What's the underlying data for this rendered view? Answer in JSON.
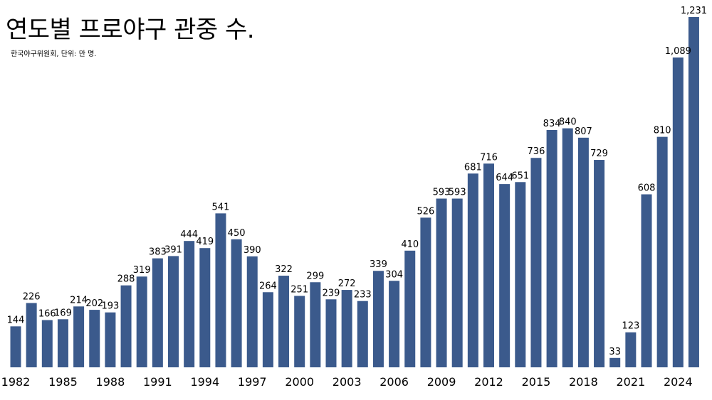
{
  "page": {
    "title": "연도별 프로야구 관중 수.",
    "subtitle": "한국야구위원회, 단위: 만 명."
  },
  "chart_data": {
    "type": "bar",
    "title": "연도별 프로야구 관중 수.",
    "subtitle": "한국야구위원회, 단위: 만 명.",
    "xlabel": "",
    "ylabel": "",
    "unit": "만 명",
    "bar_color": "#3b5a8c",
    "ylim": [
      0,
      1231
    ],
    "grid": false,
    "legend": "none",
    "categories": [
      "1982",
      "1983",
      "1984",
      "1985",
      "1986",
      "1987",
      "1988",
      "1989",
      "1990",
      "1991",
      "1992",
      "1993",
      "1994",
      "1995",
      "1996",
      "1997",
      "1998",
      "1999",
      "2000",
      "2001",
      "2002",
      "2003",
      "2004",
      "2005",
      "2006",
      "2007",
      "2008",
      "2009",
      "2010",
      "2011",
      "2012",
      "2013",
      "2014",
      "2015",
      "2016",
      "2017",
      "2018",
      "2019",
      "2020",
      "2021",
      "2022",
      "2023",
      "2024",
      "2025"
    ],
    "values": [
      144,
      226,
      166,
      169,
      214,
      202,
      193,
      288,
      319,
      383,
      391,
      444,
      419,
      541,
      450,
      390,
      264,
      322,
      251,
      299,
      239,
      272,
      233,
      339,
      304,
      410,
      526,
      593,
      593,
      681,
      716,
      644,
      651,
      736,
      834,
      840,
      807,
      729,
      33,
      123,
      608,
      810,
      1089,
      1231
    ],
    "value_labels": [
      "144",
      "226",
      "166",
      "169",
      "214",
      "202",
      "193",
      "288",
      "319",
      "383",
      "391",
      "444",
      "419",
      "541",
      "450",
      "390",
      "264",
      "322",
      "251",
      "299",
      "239",
      "272",
      "233",
      "339",
      "304",
      "410",
      "526",
      "593",
      "593",
      "681",
      "716",
      "644",
      "651",
      "736",
      "834",
      "840",
      "807",
      "729",
      "33",
      "123",
      "608",
      "810",
      "1,089",
      "1,231"
    ],
    "x_ticks": [
      "1982",
      "1985",
      "1988",
      "1991",
      "1994",
      "1997",
      "2000",
      "2003",
      "2006",
      "2009",
      "2012",
      "2015",
      "2018",
      "2021",
      "2024"
    ]
  }
}
